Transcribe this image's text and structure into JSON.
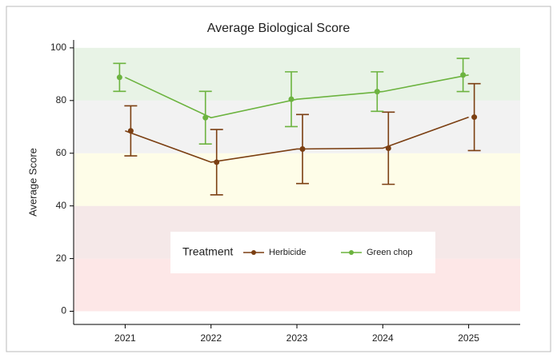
{
  "chart_data": {
    "type": "line",
    "title": "Average Biological Score",
    "y_label": "Average Score",
    "x": [
      2021,
      2022,
      2023,
      2024,
      2025
    ],
    "xlim": [
      2020.4,
      2025.6
    ],
    "xticks": [
      2021,
      2022,
      2023,
      2024,
      2025
    ],
    "ylim": [
      -5,
      103
    ],
    "yticks": [
      0,
      20,
      40,
      60,
      80,
      100
    ],
    "bands": [
      {
        "from": 0,
        "to": 20,
        "color": "#fde7e7"
      },
      {
        "from": 20,
        "to": 40,
        "color": "#f5e8e8"
      },
      {
        "from": 40,
        "to": 60,
        "color": "#fefde8"
      },
      {
        "from": 60,
        "to": 80,
        "color": "#f2f2f2"
      },
      {
        "from": 80,
        "to": 100,
        "color": "#e8f3e6"
      }
    ],
    "legend_title": "Treatment",
    "series": [
      {
        "name": "Herbicide",
        "color": "#7b3f12",
        "values": [
          68.5,
          56.6,
          61.6,
          61.9,
          73.7
        ],
        "errors": [
          9.5,
          12.4,
          13.1,
          13.7,
          12.7
        ]
      },
      {
        "name": "Green chop",
        "color": "#6cb33f",
        "values": [
          88.8,
          73.5,
          80.5,
          83.4,
          89.7
        ],
        "errors": [
          5.3,
          10,
          10.4,
          7.5,
          6.3
        ]
      }
    ]
  }
}
